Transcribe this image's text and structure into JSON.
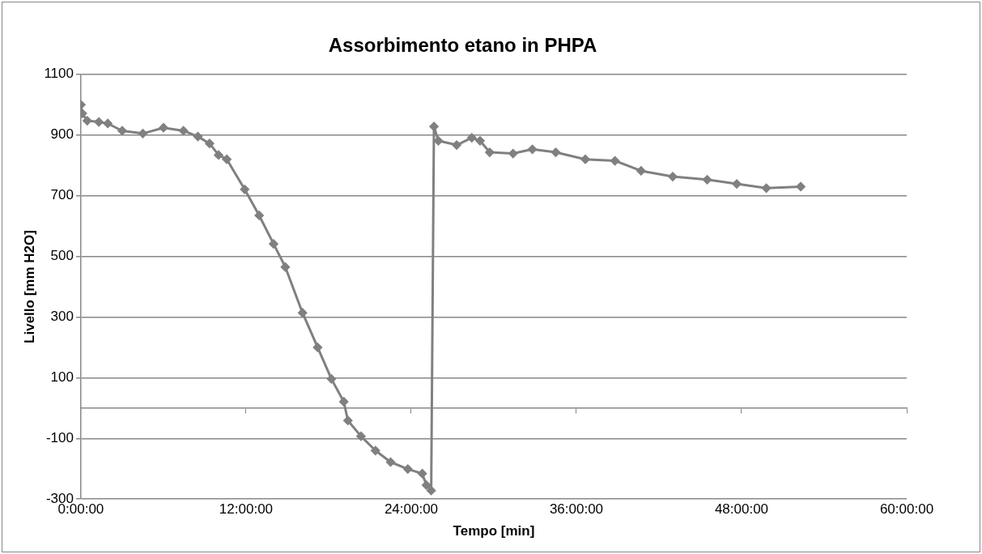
{
  "chart_data": {
    "type": "line",
    "title": "Assorbimento etano in PHPA",
    "xlabel": "Tempo [min]",
    "ylabel": "Livello [mm H2O]",
    "xlim": [
      0,
      60
    ],
    "xticks": [
      {
        "value": 0,
        "label": "0:00:00"
      },
      {
        "value": 12,
        "label": "12:00:00"
      },
      {
        "value": 24,
        "label": "24:00:00"
      },
      {
        "value": 36,
        "label": "36:00:00"
      },
      {
        "value": 48,
        "label": "48:00:00"
      },
      {
        "value": 60,
        "label": "60:00:00"
      }
    ],
    "ylim": [
      -300,
      1100
    ],
    "yticks": [
      -300,
      -100,
      100,
      300,
      500,
      700,
      900,
      1100
    ],
    "grid": "y",
    "legend": false,
    "marker": "diamond",
    "line_style": "solid",
    "series": [
      {
        "color": "#808080",
        "x": [
          0,
          0.1,
          0.46,
          1.3,
          1.95,
          3.0,
          4.5,
          6.0,
          7.45,
          8.5,
          9.35,
          10.0,
          10.6,
          11.9,
          12.95,
          14.0,
          14.85,
          16.1,
          17.2,
          18.2,
          19.1,
          19.4,
          20.35,
          21.4,
          22.5,
          23.75,
          24.8,
          25.1,
          25.45,
          25.65,
          25.97,
          27.3,
          28.4,
          29.0,
          29.7,
          31.4,
          32.8,
          34.5,
          36.65,
          38.8,
          40.7,
          43.0,
          45.5,
          47.65,
          49.8,
          52.3
        ],
        "values": [
          1000,
          971,
          947,
          943,
          938,
          914,
          905,
          924,
          914,
          895,
          872,
          834,
          820,
          721,
          635,
          541,
          465,
          314,
          200,
          96,
          21,
          -41,
          -93,
          -140,
          -178,
          -201,
          -216,
          -254,
          -272,
          928,
          881,
          867,
          891,
          881,
          843,
          839,
          853,
          843,
          820,
          815,
          782,
          763,
          753,
          739,
          725,
          730
        ]
      }
    ]
  }
}
